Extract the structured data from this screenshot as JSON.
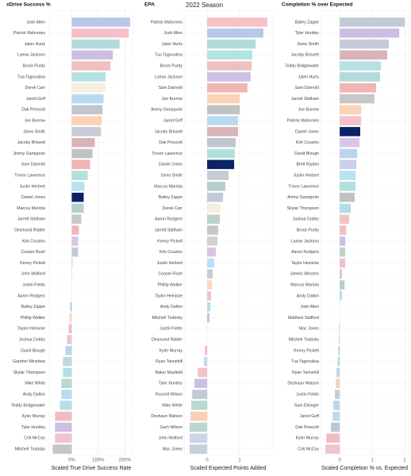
{
  "chart_data": [
    {
      "type": "hbar",
      "title": "xDrive Success %",
      "x_label": "Scaled True Drive Success Rate",
      "categories": [
        "Josh Allen",
        "Patrick Mahomes",
        "Jalen Hurts",
        "Lamar Jackson",
        "Brock Purdy",
        "Tua Tagovailoa",
        "Derek Carr",
        "Jared Goff",
        "Dak Prescott",
        "Joe Burrow",
        "Geno Smith",
        "Jacoby Brissett",
        "Jimmy Garoppolo",
        "Sam Darnold",
        "Trevor Lawrence",
        "Justin Herbert",
        "Daniel Jones",
        "Marcus Mariota",
        "Jarrett Stidham",
        "Desmond Ridder",
        "Kirk Cousins",
        "Cooper Rush",
        "Kenny Pickett",
        "John Wolford",
        "Justin Fields",
        "Aaron Rodgers",
        "Bailey Zappe",
        "Phillip Walker",
        "Taylor Heinicke",
        "Joshua Dobbs",
        "David Blough",
        "Gardner Minshew",
        "Skylar Thompson",
        "Mike White",
        "Andy Dalton",
        "Teddy Bridgewater",
        "Kyler Murray",
        "Tyler Huntley",
        "Colt McCoy",
        "Mitchell Trubisky"
      ],
      "values": [
        220,
        215,
        180,
        155,
        146,
        128,
        128,
        120,
        116,
        113,
        110,
        87,
        78,
        69,
        60,
        48,
        45,
        45,
        36,
        27,
        24,
        24,
        3,
        1,
        0,
        0,
        -6,
        -9,
        -12,
        -18,
        -24,
        -33,
        -33,
        -39,
        -39,
        -45,
        -63,
        -63,
        -63,
        -72
      ],
      "xlim": [
        -85,
        232
      ],
      "xticks": [
        {
          "value": 0,
          "label": "0%"
        },
        {
          "value": 100,
          "label": "100%"
        },
        {
          "value": 200,
          "label": "200%"
        }
      ],
      "grid": true
    },
    {
      "type": "hbar",
      "title": "EPA",
      "subtitle": "2022 Season",
      "x_label": "Scaled Expected Points Added",
      "categories": [
        "Patrick Mahomes",
        "Josh Allen",
        "Jalen Hurts",
        "Tua Tagovailoa",
        "Brock Purdy",
        "Lamar Jackson",
        "Sam Darnold",
        "Joe Burrow",
        "Jimmy Garoppolo",
        "Jared Goff",
        "Jacoby Brissett",
        "Dak Prescott",
        "Trevor Lawrence",
        "Daniel Jones",
        "Geno Smith",
        "Marcus Mariota",
        "Bailey Zappe",
        "Derek Carr",
        "Aaron Rodgers",
        "Jarrett Stidham",
        "Kenny Pickett",
        "Kirk Cousins",
        "Justin Herbert",
        "Cooper Rush",
        "Phillip Walker",
        "Taylor Heinicke",
        "Andy Dalton",
        "Mitchell Trubisky",
        "Justin Fields",
        "Desmond Ridder",
        "Kyler Murray",
        "Ryan Tannehill",
        "Baker Mayfield",
        "Tyler Huntley",
        "Russell Wilson",
        "Mike White",
        "Deshaun Watson",
        "Zach Wilson",
        "John Wolford",
        "Mac Jones"
      ],
      "values": [
        1.85,
        1.73,
        1.49,
        1.39,
        1.37,
        1.34,
        1.24,
        1.0,
        1.0,
        0.95,
        0.95,
        0.88,
        0.85,
        0.83,
        0.66,
        0.56,
        0.49,
        0.41,
        0.39,
        0.34,
        0.32,
        0.27,
        0.22,
        0.17,
        0.15,
        0.12,
        0.1,
        0.07,
        0,
        0,
        -0.07,
        -0.1,
        -0.29,
        -0.39,
        -0.46,
        -0.49,
        -0.51,
        -0.54,
        -0.54,
        -0.54
      ],
      "xlim": [
        -0.71,
        2.0
      ],
      "xticks": [
        0,
        1
      ],
      "grid": true
    },
    {
      "type": "hbar",
      "title": "Completion % over Expected",
      "x_label": "Scaled Completion % vs. Expected",
      "categories": [
        "Bailey Zappe",
        "Tyler Huntley",
        "Geno Smith",
        "Jacoby Brissett",
        "Teddy Bridgewater",
        "Jalen Hurts",
        "Sam Darnold",
        "Jarrett Stidham",
        "Joe Burrow",
        "Patrick Mahomes",
        "Daniel Jones",
        "Kirk Cousins",
        "David Blough",
        "Brett Rypien",
        "Justin Herbert",
        "Trevor Lawrence",
        "Jimmy Garoppolo",
        "Skylar Thompson",
        "Joshua Dobbs",
        "Brock Purdy",
        "Lamar Jackson",
        "Aaron Rodgers",
        "Taylor Heinicke",
        "Jameis Winston",
        "Marcus Mariota",
        "Andy Dalton",
        "Josh Allen",
        "Matthew Stafford",
        "Mac Jones",
        "Mitchell Trubisky",
        "Kenny Pickett",
        "Tua Tagovailoa",
        "Ryan Tannehill",
        "Deshaun Watson",
        "Justin Fields",
        "Sam Ehlinger",
        "Jared Goff",
        "Dak Prescott",
        "Kyler Murray",
        "Colt McCoy"
      ],
      "values": [
        2.0,
        1.83,
        1.51,
        1.46,
        1.27,
        1.24,
        1.12,
        1.07,
        0.66,
        0.66,
        0.63,
        0.61,
        0.54,
        0.51,
        0.49,
        0.49,
        0.46,
        0.34,
        0.29,
        0.2,
        0.17,
        0.17,
        0.17,
        0.07,
        0.15,
        0.07,
        0,
        0,
        -0.02,
        -0.02,
        -0.05,
        -0.07,
        -0.1,
        -0.12,
        -0.15,
        -0.2,
        -0.22,
        -0.27,
        -0.41,
        -0.44
      ],
      "xlim": [
        -0.59,
        2.12
      ],
      "xticks": [
        0,
        1,
        2
      ],
      "grid": true
    }
  ],
  "bar_colors": {
    "Josh Allen": "#b9c8e6",
    "Patrick Mahomes": "#f6c1c6",
    "Jalen Hurts": "#b3dada",
    "Lamar Jackson": "#cbc0e3",
    "Brock Purdy": "#eec0c0",
    "Tua Tagovailoa": "#b3e3e3",
    "Derek Carr": "#f5efe0",
    "Jared Goff": "#b9dbf0",
    "Dak Prescott": "#c0c6d0",
    "Joe Burrow": "#fcd2b6",
    "Geno Smith": "#c5ccd5",
    "Jacoby Brissett": "#d9b3b8",
    "Jimmy Garoppolo": "#c2c2c2",
    "Sam Darnold": "#f0b5b5",
    "Trevor Lawrence": "#b3e0dc",
    "Justin Herbert": "#b9e2f5",
    "Daniel Jones": "#0b2265",
    "Marcus Mariota": "#b7cfcc",
    "Jarrett Stidham": "#c7c7c7",
    "Desmond Ridder": "#f2b6b9",
    "Kirk Cousins": "#d8c6e8",
    "Cooper Rush": "#c5cad6",
    "Kenny Pickett": "#d2d2d2",
    "John Wolford": "#c8d6ea",
    "Justin Fields": "#c8ccd6",
    "Aaron Rodgers": "#bcd1c8",
    "Bailey Zappe": "#c3c9d6",
    "Phillip Walker": "#fcd9c0",
    "Taylor Heinicke": "#f0c0c8",
    "Joshua Dobbs": "#f3c3c5",
    "David Blough": "#b9d5ee",
    "Gardner Minshew": "#b9dbdb",
    "Skylar Thompson": "#b3dde6",
    "Mike White": "#b8d8d0",
    "Andy Dalton": "#b9dcef",
    "Teddy Bridgewater": "#b7e0e6",
    "Kyler Murray": "#efbcc4",
    "Tyler Huntley": "#cbc0e3",
    "Colt McCoy": "#eec5cc",
    "Mitchell Trubisky": "#c6c6c6",
    "Ryan Tannehill": "#c0d8ec",
    "Baker Mayfield": "#f0c2c8",
    "Russell Wilson": "#c3c9d6",
    "Deshaun Watson": "#f9cfb5",
    "Zach Wilson": "#bed6ce",
    "Mac Jones": "#c7cfdb",
    "Brett Rypien": "#c8d0ea",
    "Jameis Winston": "#d8d0b8",
    "Matthew Stafford": "#b9d5ee",
    "Sam Ehlinger": "#c5d1e6"
  }
}
